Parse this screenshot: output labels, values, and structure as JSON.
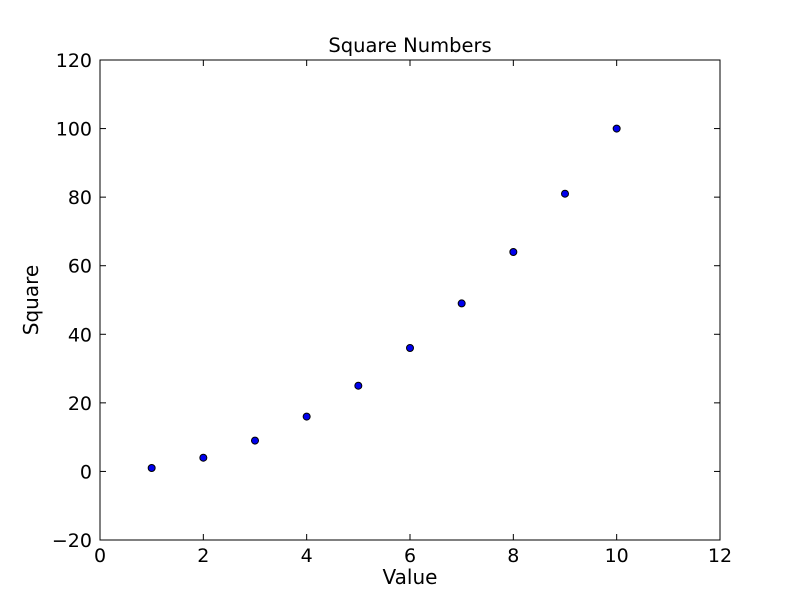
{
  "chart_data": {
    "type": "scatter",
    "title": "Square Numbers",
    "xlabel": "Value",
    "ylabel": "Square",
    "x": [
      1,
      2,
      3,
      4,
      5,
      6,
      7,
      8,
      9,
      10
    ],
    "y": [
      1,
      4,
      9,
      16,
      25,
      36,
      49,
      64,
      81,
      100
    ],
    "xlim": [
      0,
      12
    ],
    "ylim": [
      -20,
      120
    ],
    "xticks": [
      0,
      2,
      4,
      6,
      8,
      10,
      12
    ],
    "yticks": [
      -20,
      0,
      20,
      40,
      60,
      80,
      100,
      120
    ],
    "grid": false,
    "legend": null,
    "marker": {
      "shape": "circle",
      "fill_color": "#0000ee",
      "edge_color": "#000000",
      "radius": 3.5
    },
    "colors": {
      "background": "#ffffff",
      "spines": "#000000",
      "text": "#000000"
    },
    "tick_style": {
      "direction": "in",
      "length": 6,
      "sides": [
        "top",
        "bottom",
        "left",
        "right"
      ]
    }
  }
}
